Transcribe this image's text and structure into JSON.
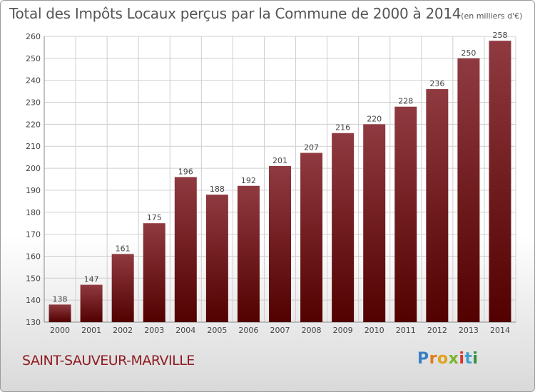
{
  "header": {
    "title": "Total des Impôts Locaux perçus par la Commune de 2000 à 2014",
    "unit": "(en milliers d'€)"
  },
  "commune": "SAINT-SAUVEUR-MARVILLE",
  "logo": {
    "letters": [
      "P",
      "r",
      "o",
      "x",
      "i",
      "t",
      "i"
    ]
  },
  "colors": {
    "bar_top": "#8f3a40",
    "bar_bottom": "#520000",
    "grid": "#cfcfcf",
    "axis_text": "#444444"
  },
  "chart_data": {
    "type": "bar",
    "title": "Total des Impôts Locaux perçus par la Commune de 2000 à 2014",
    "xlabel": "",
    "ylabel": "en milliers d'€",
    "categories": [
      "2000",
      "2001",
      "2002",
      "2003",
      "2004",
      "2005",
      "2006",
      "2007",
      "2008",
      "2009",
      "2010",
      "2011",
      "2012",
      "2013",
      "2014"
    ],
    "values": [
      138,
      147,
      161,
      175,
      196,
      188,
      192,
      201,
      207,
      216,
      220,
      228,
      236,
      250,
      258
    ],
    "ylim": [
      130,
      260
    ],
    "yticks": [
      130,
      140,
      150,
      160,
      170,
      180,
      190,
      200,
      210,
      220,
      230,
      240,
      250,
      260
    ],
    "grid": true
  }
}
